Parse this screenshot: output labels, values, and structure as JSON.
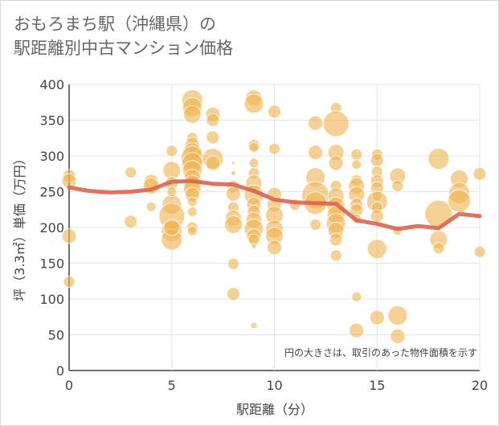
{
  "title_line1": "おもろまち駅（沖縄県）の",
  "title_line2": "駅距離別中古マンション価格",
  "chart_data": {
    "type": "scatter",
    "xlabel": "駅距離（分）",
    "ylabel": "坪（3.3㎡）単価（万円）",
    "xlim": [
      0,
      20
    ],
    "ylim": [
      0,
      400
    ],
    "x_ticks": [
      0,
      5,
      10,
      15,
      20
    ],
    "y_ticks": [
      0,
      50,
      100,
      150,
      200,
      250,
      300,
      350,
      400
    ],
    "annotation": "円の大きさは、取引のあった物件面積を示す",
    "grid": true,
    "colors": {
      "bubble": "#f0b34e",
      "line": "#d9644f"
    },
    "trend_line": {
      "x": [
        0,
        1,
        2,
        3,
        4,
        5,
        6,
        7,
        8,
        9,
        10,
        11,
        12,
        13,
        14,
        15,
        16,
        17,
        18,
        19,
        20
      ],
      "y": [
        256,
        251,
        249,
        250,
        253,
        264,
        265,
        261,
        260,
        251,
        239,
        235,
        234,
        233,
        210,
        205,
        198,
        202,
        199,
        219,
        216
      ]
    },
    "points": [
      {
        "x": 0,
        "y": 272,
        "s": 8
      },
      {
        "x": 0,
        "y": 265,
        "s": 9
      },
      {
        "x": 0,
        "y": 188,
        "s": 9
      },
      {
        "x": 0,
        "y": 124,
        "s": 7
      },
      {
        "x": 3,
        "y": 277,
        "s": 7
      },
      {
        "x": 3,
        "y": 208,
        "s": 8
      },
      {
        "x": 4,
        "y": 264,
        "s": 9
      },
      {
        "x": 4,
        "y": 258,
        "s": 10
      },
      {
        "x": 4,
        "y": 229,
        "s": 6
      },
      {
        "x": 5,
        "y": 307,
        "s": 7
      },
      {
        "x": 5,
        "y": 280,
        "s": 11
      },
      {
        "x": 5,
        "y": 262,
        "s": 8
      },
      {
        "x": 5,
        "y": 232,
        "s": 12
      },
      {
        "x": 5,
        "y": 216,
        "s": 16
      },
      {
        "x": 5,
        "y": 195,
        "s": 13
      },
      {
        "x": 5,
        "y": 183,
        "s": 13
      },
      {
        "x": 5,
        "y": 200,
        "s": 10
      },
      {
        "x": 5,
        "y": 250,
        "s": 6
      },
      {
        "x": 6,
        "y": 378,
        "s": 13
      },
      {
        "x": 6,
        "y": 368,
        "s": 12
      },
      {
        "x": 6,
        "y": 358,
        "s": 11
      },
      {
        "x": 6,
        "y": 325,
        "s": 7
      },
      {
        "x": 6,
        "y": 316,
        "s": 9
      },
      {
        "x": 6,
        "y": 306,
        "s": 11
      },
      {
        "x": 6,
        "y": 298,
        "s": 14
      },
      {
        "x": 6,
        "y": 290,
        "s": 13
      },
      {
        "x": 6,
        "y": 280,
        "s": 12
      },
      {
        "x": 6,
        "y": 270,
        "s": 10
      },
      {
        "x": 6,
        "y": 262,
        "s": 10
      },
      {
        "x": 6,
        "y": 254,
        "s": 11
      },
      {
        "x": 6,
        "y": 246,
        "s": 9
      },
      {
        "x": 6,
        "y": 236,
        "s": 6
      },
      {
        "x": 6,
        "y": 222,
        "s": 6
      },
      {
        "x": 6,
        "y": 200,
        "s": 7
      },
      {
        "x": 6,
        "y": 195,
        "s": 6
      },
      {
        "x": 7,
        "y": 358,
        "s": 9
      },
      {
        "x": 7,
        "y": 350,
        "s": 8
      },
      {
        "x": 7,
        "y": 326,
        "s": 8
      },
      {
        "x": 7,
        "y": 296,
        "s": 13
      },
      {
        "x": 7,
        "y": 290,
        "s": 9
      },
      {
        "x": 8,
        "y": 290,
        "s": 2
      },
      {
        "x": 8,
        "y": 276,
        "s": 3
      },
      {
        "x": 8,
        "y": 257,
        "s": 8
      },
      {
        "x": 8,
        "y": 247,
        "s": 9
      },
      {
        "x": 8,
        "y": 228,
        "s": 7
      },
      {
        "x": 8,
        "y": 213,
        "s": 10
      },
      {
        "x": 8,
        "y": 204,
        "s": 11
      },
      {
        "x": 8,
        "y": 149,
        "s": 7
      },
      {
        "x": 8,
        "y": 107,
        "s": 8
      },
      {
        "x": 9,
        "y": 381,
        "s": 10
      },
      {
        "x": 9,
        "y": 373,
        "s": 12
      },
      {
        "x": 9,
        "y": 315,
        "s": 7
      },
      {
        "x": 9,
        "y": 312,
        "s": 6
      },
      {
        "x": 9,
        "y": 290,
        "s": 6
      },
      {
        "x": 9,
        "y": 276,
        "s": 7
      },
      {
        "x": 9,
        "y": 262,
        "s": 10
      },
      {
        "x": 9,
        "y": 246,
        "s": 12
      },
      {
        "x": 9,
        "y": 232,
        "s": 9
      },
      {
        "x": 9,
        "y": 222,
        "s": 8
      },
      {
        "x": 9,
        "y": 210,
        "s": 10
      },
      {
        "x": 9,
        "y": 198,
        "s": 12
      },
      {
        "x": 9,
        "y": 188,
        "s": 9
      },
      {
        "x": 9,
        "y": 183,
        "s": 7
      },
      {
        "x": 9,
        "y": 174,
        "s": 3
      },
      {
        "x": 9,
        "y": 63,
        "s": 4
      },
      {
        "x": 10,
        "y": 362,
        "s": 8
      },
      {
        "x": 10,
        "y": 310,
        "s": 7
      },
      {
        "x": 10,
        "y": 246,
        "s": 9
      },
      {
        "x": 10,
        "y": 232,
        "s": 9
      },
      {
        "x": 10,
        "y": 217,
        "s": 11
      },
      {
        "x": 10,
        "y": 198,
        "s": 11
      },
      {
        "x": 10,
        "y": 188,
        "s": 11
      },
      {
        "x": 10,
        "y": 172,
        "s": 9
      },
      {
        "x": 11,
        "y": 232,
        "s": 7
      },
      {
        "x": 12,
        "y": 346,
        "s": 9
      },
      {
        "x": 12,
        "y": 305,
        "s": 9
      },
      {
        "x": 12,
        "y": 270,
        "s": 12
      },
      {
        "x": 12,
        "y": 245,
        "s": 17
      },
      {
        "x": 12,
        "y": 234,
        "s": 14
      },
      {
        "x": 12,
        "y": 204,
        "s": 7
      },
      {
        "x": 13,
        "y": 367,
        "s": 7
      },
      {
        "x": 13,
        "y": 345,
        "s": 16
      },
      {
        "x": 13,
        "y": 305,
        "s": 10
      },
      {
        "x": 13,
        "y": 290,
        "s": 9
      },
      {
        "x": 13,
        "y": 258,
        "s": 7
      },
      {
        "x": 13,
        "y": 244,
        "s": 10
      },
      {
        "x": 13,
        "y": 230,
        "s": 11
      },
      {
        "x": 13,
        "y": 218,
        "s": 11
      },
      {
        "x": 13,
        "y": 206,
        "s": 12
      },
      {
        "x": 13,
        "y": 196,
        "s": 10
      },
      {
        "x": 13,
        "y": 183,
        "s": 8
      },
      {
        "x": 13,
        "y": 161,
        "s": 7
      },
      {
        "x": 14,
        "y": 302,
        "s": 7
      },
      {
        "x": 14,
        "y": 288,
        "s": 6
      },
      {
        "x": 14,
        "y": 266,
        "s": 7
      },
      {
        "x": 14,
        "y": 258,
        "s": 10
      },
      {
        "x": 14,
        "y": 246,
        "s": 10
      },
      {
        "x": 14,
        "y": 232,
        "s": 8
      },
      {
        "x": 14,
        "y": 224,
        "s": 8
      },
      {
        "x": 14,
        "y": 212,
        "s": 6
      },
      {
        "x": 14,
        "y": 103,
        "s": 6
      },
      {
        "x": 14,
        "y": 56,
        "s": 9
      },
      {
        "x": 15,
        "y": 302,
        "s": 7
      },
      {
        "x": 15,
        "y": 294,
        "s": 8
      },
      {
        "x": 15,
        "y": 278,
        "s": 7
      },
      {
        "x": 15,
        "y": 265,
        "s": 8
      },
      {
        "x": 15,
        "y": 255,
        "s": 8
      },
      {
        "x": 15,
        "y": 244,
        "s": 6
      },
      {
        "x": 15,
        "y": 236,
        "s": 13
      },
      {
        "x": 15,
        "y": 228,
        "s": 7
      },
      {
        "x": 15,
        "y": 216,
        "s": 8
      },
      {
        "x": 15,
        "y": 170,
        "s": 12
      },
      {
        "x": 15,
        "y": 74,
        "s": 9
      },
      {
        "x": 16,
        "y": 272,
        "s": 10
      },
      {
        "x": 16,
        "y": 258,
        "s": 7
      },
      {
        "x": 16,
        "y": 196,
        "s": 6
      },
      {
        "x": 16,
        "y": 77,
        "s": 12
      },
      {
        "x": 16,
        "y": 48,
        "s": 9
      },
      {
        "x": 18,
        "y": 296,
        "s": 13
      },
      {
        "x": 18,
        "y": 219,
        "s": 17
      },
      {
        "x": 18,
        "y": 183,
        "s": 11
      },
      {
        "x": 18,
        "y": 171,
        "s": 7
      },
      {
        "x": 19,
        "y": 268,
        "s": 11
      },
      {
        "x": 19,
        "y": 248,
        "s": 13
      },
      {
        "x": 19,
        "y": 237,
        "s": 14
      },
      {
        "x": 20,
        "y": 275,
        "s": 8
      },
      {
        "x": 20,
        "y": 166,
        "s": 7
      }
    ]
  }
}
